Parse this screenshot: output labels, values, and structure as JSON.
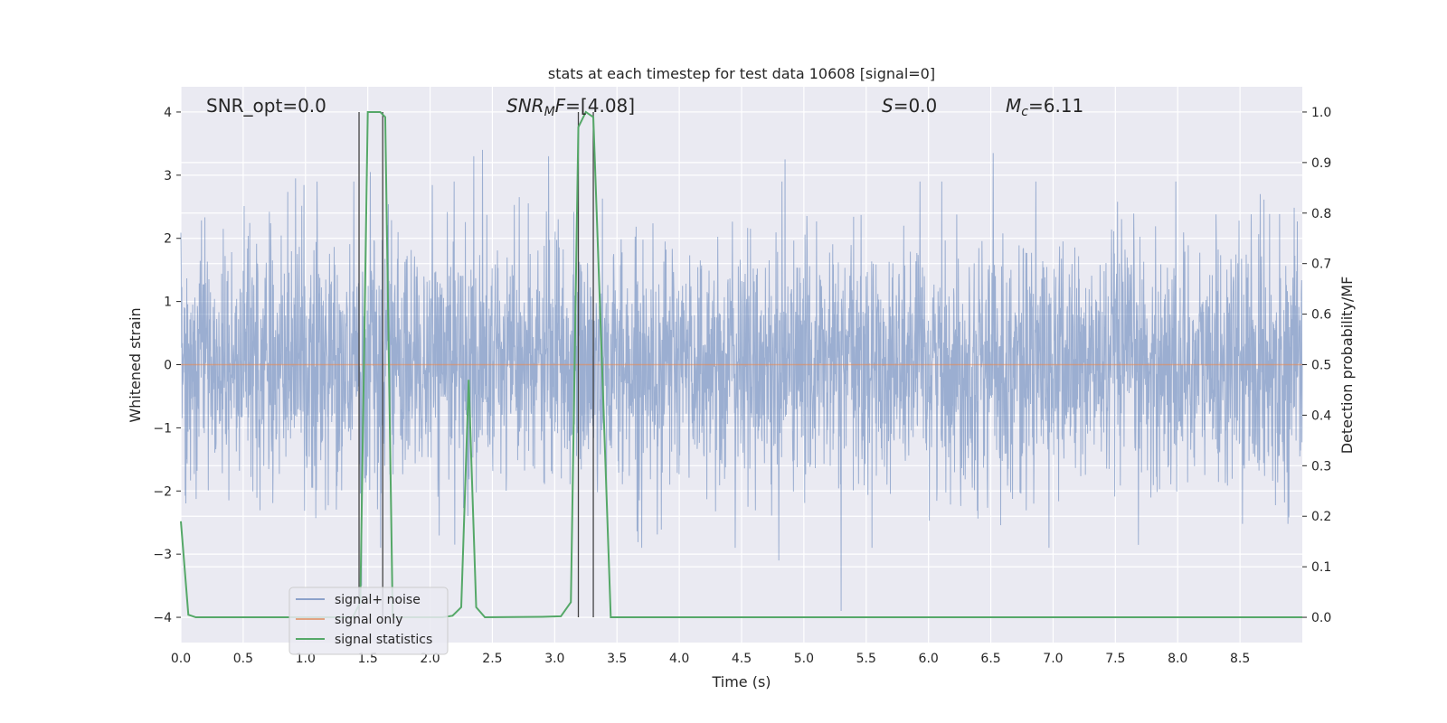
{
  "chart_data": {
    "type": "line",
    "title": "stats at each timestep for test data 10608 [signal=0]",
    "xlabel": "Time (s)",
    "ylabel_left": "Whitened strain",
    "ylabel_right": "Detection probability/MF",
    "xlim": [
      0.0,
      9.0
    ],
    "ylim_left": [
      -4.4,
      4.4
    ],
    "ylim_right": [
      -0.05,
      1.05
    ],
    "x_ticks": [
      0.0,
      0.5,
      1.0,
      1.5,
      2.0,
      2.5,
      3.0,
      3.5,
      4.0,
      4.5,
      5.0,
      5.5,
      6.0,
      6.5,
      7.0,
      7.5,
      8.0,
      8.5
    ],
    "y_ticks_left": [
      4,
      3,
      2,
      1,
      0,
      -1,
      -2,
      -3,
      -4
    ],
    "y_ticks_right": [
      1.0,
      0.9,
      0.8,
      0.7,
      0.6,
      0.5,
      0.4,
      0.3,
      0.2,
      0.1,
      0.0
    ],
    "grid": true,
    "legend_placement": "lower-left",
    "annotations": [
      "SNR_opt=0.0",
      "SNR_MF=[4.08]",
      "S=0.0",
      "M_c=6.11"
    ],
    "vertical_markers": [
      1.43,
      1.62,
      3.19,
      3.31
    ],
    "series": [
      {
        "name": "signal+ noise",
        "axis": "left",
        "color": "#4c72b0",
        "description_values": {
          "typical_amplitude": 1.5,
          "peak_max": 3.4,
          "peak_min": -3.9
        },
        "peaks": [
          {
            "x": 0.92,
            "y": 2.95
          },
          {
            "x": 1.52,
            "y": 3.05
          },
          {
            "x": 2.35,
            "y": 3.3
          },
          {
            "x": 2.42,
            "y": 3.4
          },
          {
            "x": 2.95,
            "y": 3.3
          },
          {
            "x": 4.85,
            "y": 3.25
          },
          {
            "x": 6.52,
            "y": 3.35
          },
          {
            "x": 5.3,
            "y": -3.9
          },
          {
            "x": 1.45,
            "y": -3.5
          },
          {
            "x": 4.8,
            "y": -3.1
          }
        ]
      },
      {
        "name": "signal only",
        "axis": "left",
        "color": "#dd8452",
        "x": [
          0.0,
          9.0
        ],
        "y": [
          0.0,
          0.0
        ]
      },
      {
        "name": "signal statistics",
        "axis": "right",
        "color": "#55a868",
        "x": [
          0.0,
          0.06,
          0.12,
          1.38,
          1.44,
          1.5,
          1.6,
          1.64,
          1.7,
          2.1,
          2.18,
          2.25,
          2.31,
          2.37,
          2.44,
          2.9,
          3.05,
          3.13,
          3.19,
          3.25,
          3.31,
          3.38,
          3.45,
          3.55,
          9.0
        ],
        "y": [
          0.19,
          0.005,
          0.0,
          0.0,
          0.03,
          1.0,
          1.0,
          0.99,
          0.0,
          0.0,
          0.003,
          0.02,
          0.47,
          0.02,
          0.0,
          0.001,
          0.002,
          0.03,
          0.97,
          1.0,
          0.99,
          0.5,
          0.0,
          0.0,
          0.0
        ]
      }
    ]
  }
}
